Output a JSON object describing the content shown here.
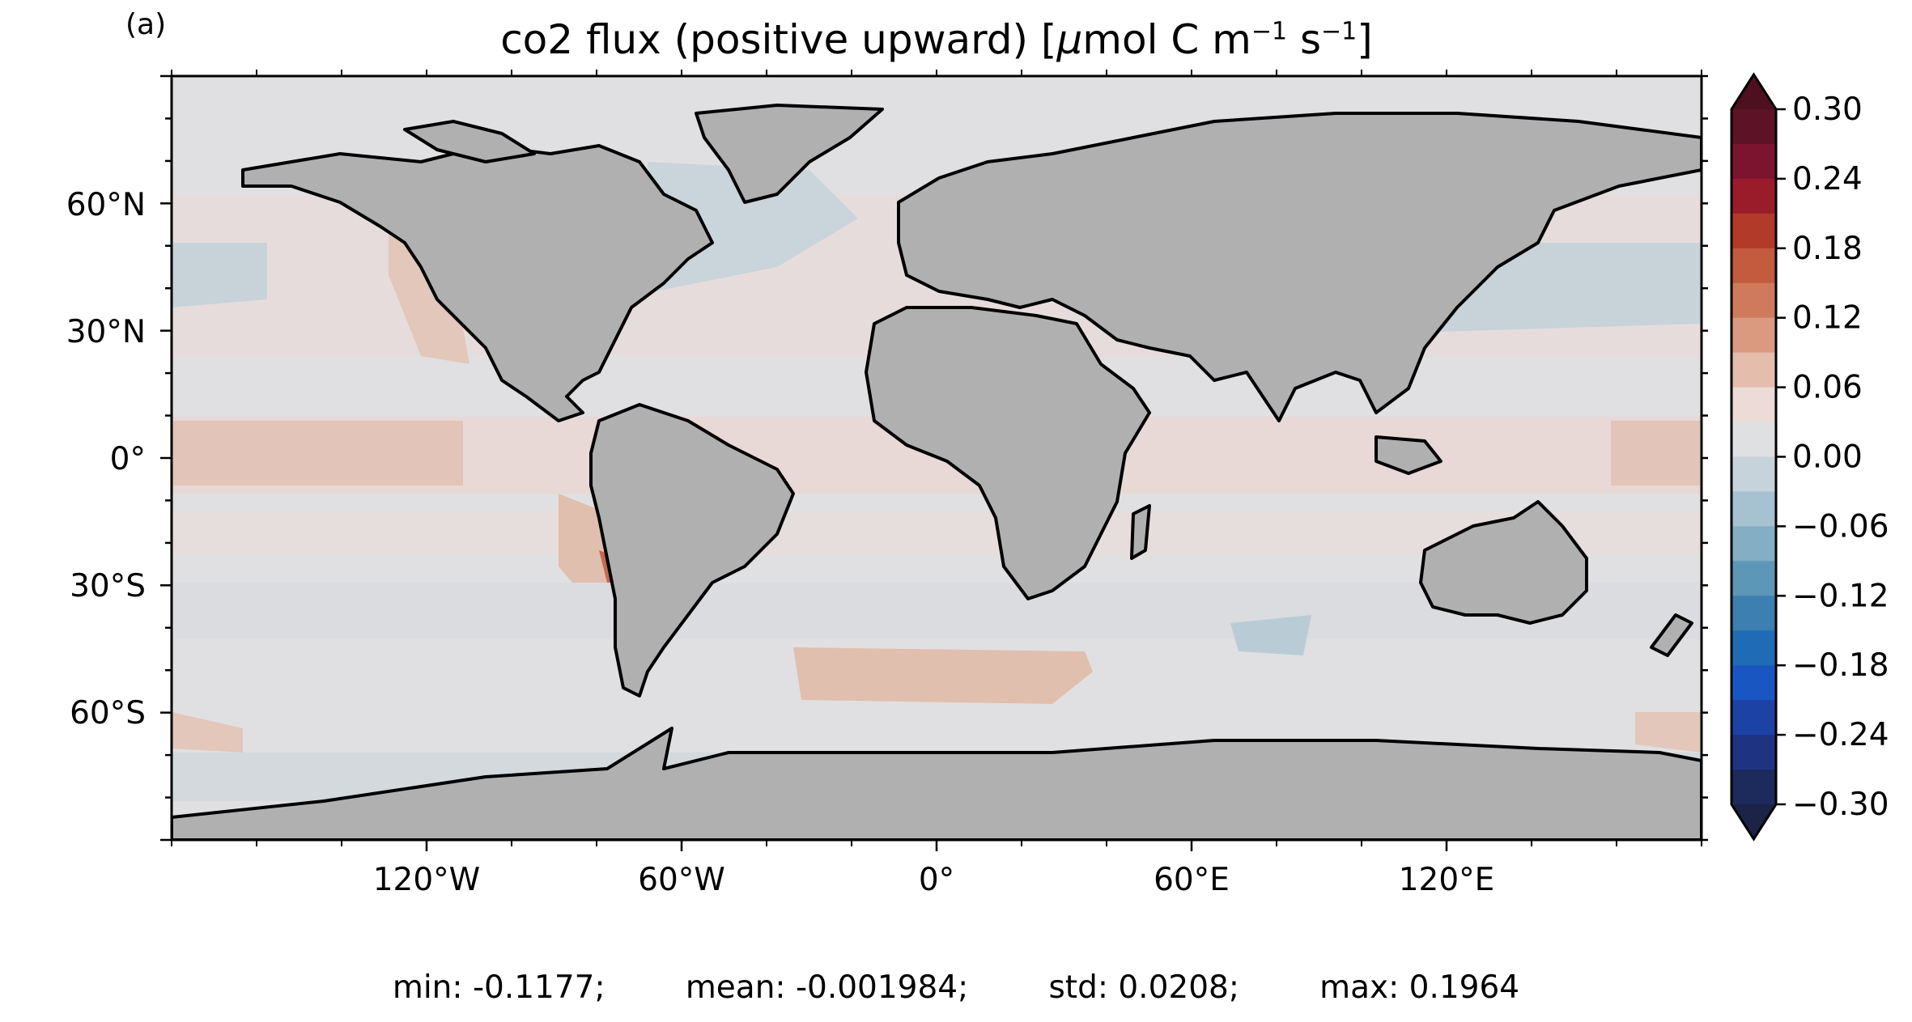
{
  "panel_label": "(a)",
  "title_parts": {
    "main": "co2 flux (positive upward) [",
    "mu": "μ",
    "unit": "mol C m",
    "exp1": "−1",
    "s": " s",
    "exp2": "−1",
    "close": "]"
  },
  "map": {
    "projection": "plate-carree",
    "land_color": "#b0b0b0",
    "ocean_background": "#e0e0e2",
    "coastline_color": "#000000",
    "lon_ticks": [
      "120°W",
      "60°W",
      "0°",
      "60°E",
      "120°E"
    ],
    "lat_ticks": [
      "60°N",
      "30°N",
      "0°",
      "30°S",
      "60°S"
    ]
  },
  "colorbar": {
    "tick_labels": [
      "0.30",
      "0.24",
      "0.18",
      "0.12",
      "0.06",
      "0.00",
      "−0.06",
      "−0.12",
      "−0.18",
      "−0.24",
      "−0.30"
    ],
    "range": [
      -0.3,
      0.3
    ],
    "colors_top_to_bottom": [
      "#5e1226",
      "#7c1430",
      "#9a1c2a",
      "#b23a28",
      "#c45a3e",
      "#cf7a5c",
      "#d99a80",
      "#e4bdad",
      "#ecdbd6",
      "#dfe0e2",
      "#c6d3da",
      "#a6c1cf",
      "#83aec3",
      "#5d97b7",
      "#3c7fb0",
      "#1f6bb6",
      "#1a56c2",
      "#1d42a6",
      "#1e3482",
      "#1d2a5c"
    ],
    "extend_top_color": "#4e1020",
    "extend_bottom_color": "#1b2346"
  },
  "stats": {
    "min": "min: -0.1177;",
    "mean": "mean: -0.001984;",
    "std": "std: 0.0208;",
    "max": "max: 0.1964"
  }
}
